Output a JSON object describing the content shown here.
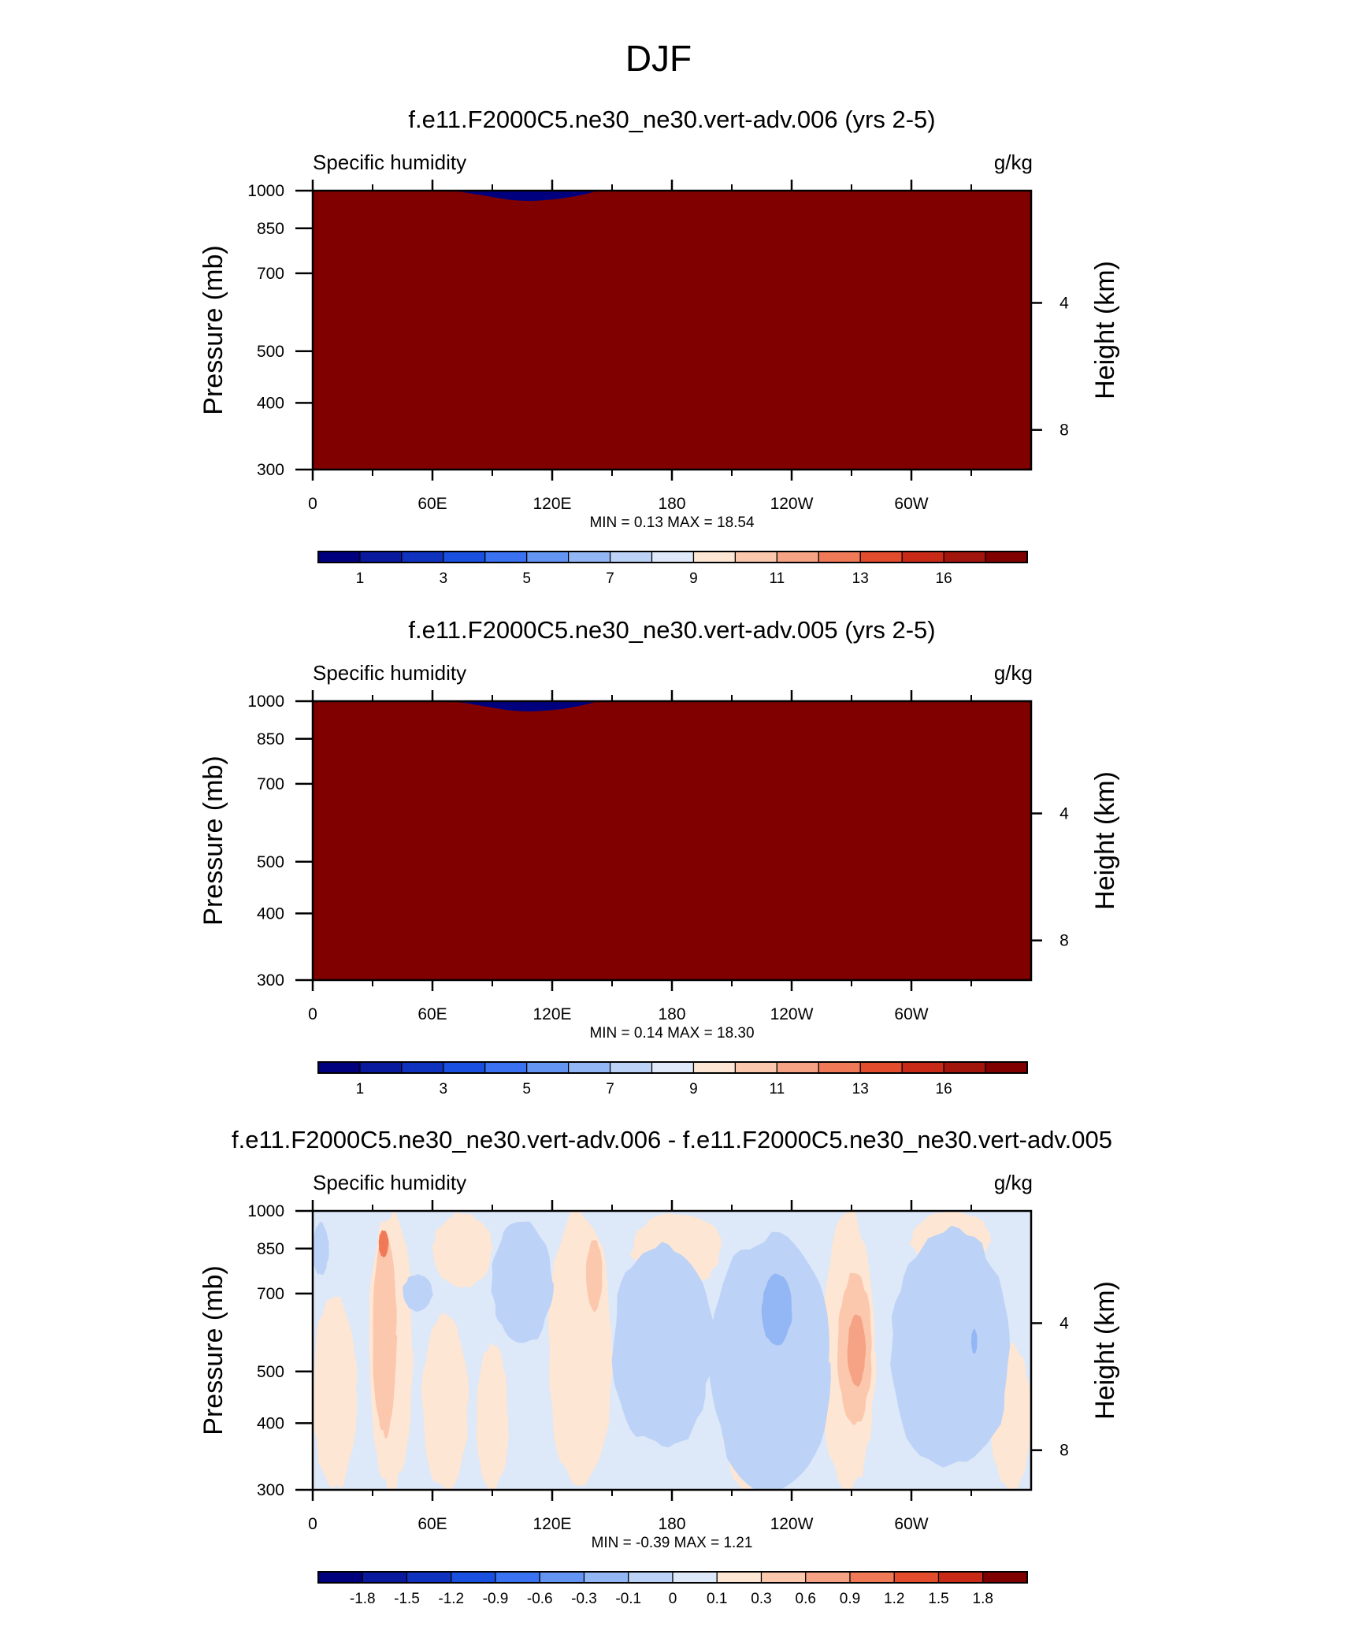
{
  "figure": {
    "title": "DJF"
  },
  "chart_data": [
    {
      "type": "heatmap",
      "title": "f.e11.F2000C5.ne30_ne30.vert-adv.006 (yrs 2-5)",
      "subtitle_left": "Specific humidity",
      "subtitle_right": "g/kg",
      "ylabel": "Pressure (mb)",
      "ylabel_right": "Height (km)",
      "x_ticks": [
        "0",
        "60E",
        "120E",
        "180",
        "120W",
        "60W"
      ],
      "y_ticks": [
        "300",
        "400",
        "500",
        "700",
        "850",
        "1000"
      ],
      "y_right_ticks": [
        "8",
        "4"
      ],
      "stats": {
        "min_label": "MIN =",
        "min": "0.13",
        "max_label": "MAX =",
        "max": "18.54"
      },
      "colorbar_labels": [
        "1",
        "3",
        "5",
        "7",
        "9",
        "11",
        "13",
        "16"
      ],
      "xlim": [
        0,
        360
      ],
      "ylim": [
        1000,
        300
      ]
    },
    {
      "type": "heatmap",
      "title": "f.e11.F2000C5.ne30_ne30.vert-adv.005 (yrs 2-5)",
      "subtitle_left": "Specific humidity",
      "subtitle_right": "g/kg",
      "ylabel": "Pressure (mb)",
      "ylabel_right": "Height (km)",
      "x_ticks": [
        "0",
        "60E",
        "120E",
        "180",
        "120W",
        "60W"
      ],
      "y_ticks": [
        "300",
        "400",
        "500",
        "700",
        "850",
        "1000"
      ],
      "y_right_ticks": [
        "8",
        "4"
      ],
      "stats": {
        "min_label": "MIN =",
        "min": "0.14",
        "max_label": "MAX =",
        "max": "18.30"
      },
      "colorbar_labels": [
        "1",
        "3",
        "5",
        "7",
        "9",
        "11",
        "13",
        "16"
      ],
      "xlim": [
        0,
        360
      ],
      "ylim": [
        1000,
        300
      ]
    },
    {
      "type": "heatmap",
      "title": "f.e11.F2000C5.ne30_ne30.vert-adv.006 - f.e11.F2000C5.ne30_ne30.vert-adv.005",
      "subtitle_left": "Specific humidity",
      "subtitle_right": "g/kg",
      "ylabel": "Pressure (mb)",
      "ylabel_right": "Height (km)",
      "x_ticks": [
        "0",
        "60E",
        "120E",
        "180",
        "120W",
        "60W"
      ],
      "y_ticks": [
        "300",
        "400",
        "500",
        "700",
        "850",
        "1000"
      ],
      "y_right_ticks": [
        "8",
        "4"
      ],
      "stats": {
        "min_label": "MIN =",
        "min": "-0.39",
        "max_label": "MAX =",
        "max": "1.21"
      },
      "colorbar_labels": [
        "-1.8",
        "-1.5",
        "-1.2",
        "-0.9",
        "-0.6",
        "-0.3",
        "-0.1",
        "0",
        "0.1",
        "0.3",
        "0.6",
        "0.9",
        "1.2",
        "1.5",
        "1.8"
      ],
      "xlim": [
        0,
        360
      ],
      "ylim": [
        1000,
        300
      ]
    }
  ],
  "colors": {
    "abs_scale": [
      "#00007f",
      "#0a1a9e",
      "#0f32bf",
      "#1a50e0",
      "#3a72f2",
      "#6595f2",
      "#93b6f5",
      "#bcd2f7",
      "#dfe9f9",
      "#fde6d4",
      "#fbc7ad",
      "#f6a284",
      "#f07a58",
      "#e34c2c",
      "#c82a17",
      "#a1150c",
      "#800000"
    ],
    "diff_scale": [
      "#00007f",
      "#0a1a9e",
      "#0f32bf",
      "#1a50e0",
      "#3a72f2",
      "#6595f2",
      "#93b6f5",
      "#bcd2f7",
      "#dde8f9",
      "#fde6d4",
      "#fbc7ad",
      "#f6a284",
      "#f07a58",
      "#e34c2c",
      "#c82a17",
      "#800000"
    ],
    "topography": "#000000"
  }
}
